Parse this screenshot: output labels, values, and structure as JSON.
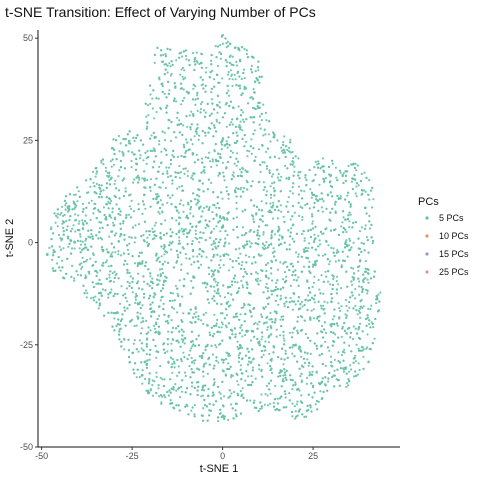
{
  "chart_data": {
    "type": "scatter",
    "title": "t-SNE Transition: Effect of Varying Number of PCs",
    "xlabel": "t-SNE 1",
    "ylabel": "t-SNE 2",
    "xlim": [
      -51,
      49
    ],
    "ylim": [
      -50,
      52
    ],
    "xticks": [
      -50,
      -25,
      0,
      25
    ],
    "yticks": [
      -50,
      -25,
      0,
      25,
      50
    ],
    "grid": false,
    "legend": {
      "title": "PCs",
      "placement": "right",
      "entries": [
        {
          "label": "5 PCs",
          "color": "#66c2a5"
        },
        {
          "label": "10 PCs",
          "color": "#fc8d62"
        },
        {
          "label": "15 PCs",
          "color": "#8da0cb"
        },
        {
          "label": "25 PCs",
          "color": "#e78ac3"
        }
      ]
    },
    "series": [
      {
        "name": "5 PCs",
        "color": "#66c2a5",
        "point_count": 5000,
        "outline_polygon": [
          [
            -19,
            46
          ],
          [
            -18,
            48
          ],
          [
            -10,
            47
          ],
          [
            -4,
            46
          ],
          [
            -2,
            49
          ],
          [
            0,
            51
          ],
          [
            2,
            49
          ],
          [
            8,
            47
          ],
          [
            10,
            45
          ],
          [
            11,
            40
          ],
          [
            12,
            33
          ],
          [
            14,
            28
          ],
          [
            18,
            26
          ],
          [
            20,
            24
          ],
          [
            23,
            17
          ],
          [
            27,
            21
          ],
          [
            31,
            20
          ],
          [
            36,
            20
          ],
          [
            40,
            17
          ],
          [
            42,
            12
          ],
          [
            41,
            6
          ],
          [
            42,
            0
          ],
          [
            40,
            -3
          ],
          [
            43,
            -8
          ],
          [
            44,
            -15
          ],
          [
            42,
            -20
          ],
          [
            42,
            -25
          ],
          [
            40,
            -30
          ],
          [
            38,
            -35
          ],
          [
            32,
            -37
          ],
          [
            26,
            -41
          ],
          [
            21,
            -44
          ],
          [
            13,
            -42
          ],
          [
            8,
            -41
          ],
          [
            4,
            -43
          ],
          [
            0,
            -44
          ],
          [
            -6,
            -45
          ],
          [
            -11,
            -42
          ],
          [
            -16,
            -40
          ],
          [
            -20,
            -40
          ],
          [
            -24,
            -36
          ],
          [
            -26,
            -31
          ],
          [
            -27,
            -27
          ],
          [
            -30,
            -24
          ],
          [
            -33,
            -18
          ],
          [
            -37,
            -14
          ],
          [
            -43,
            -10
          ],
          [
            -48,
            -6
          ],
          [
            -49,
            -2
          ],
          [
            -47,
            2
          ],
          [
            -49,
            5
          ],
          [
            -46,
            8
          ],
          [
            -43,
            12
          ],
          [
            -38,
            15
          ],
          [
            -35,
            20
          ],
          [
            -32,
            22
          ],
          [
            -30,
            26
          ],
          [
            -24,
            28
          ],
          [
            -22,
            31
          ],
          [
            -21,
            36
          ],
          [
            -20,
            42
          ]
        ]
      },
      {
        "name": "10 PCs",
        "color": "#fc8d62",
        "points": []
      },
      {
        "name": "15 PCs",
        "color": "#8da0cb",
        "points": []
      },
      {
        "name": "25 PCs",
        "color": "#e78ac3",
        "points": []
      }
    ]
  }
}
